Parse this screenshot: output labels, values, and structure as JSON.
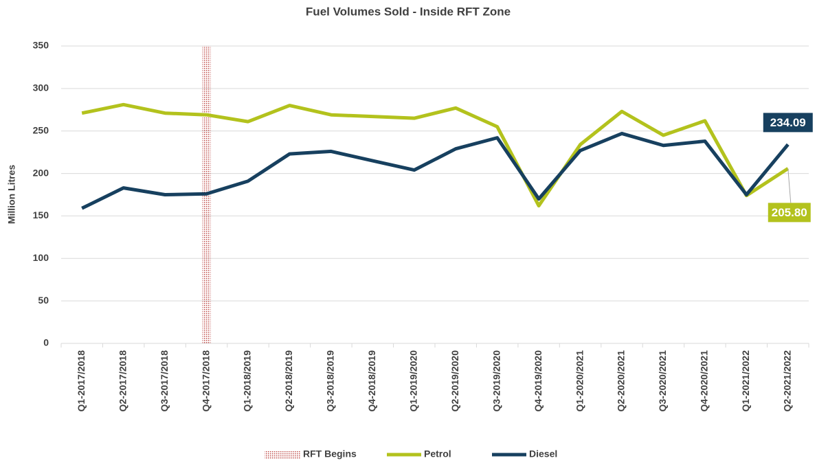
{
  "chart_data": {
    "type": "line",
    "title": "Fuel Volumes Sold - Inside RFT Zone",
    "y_label": "Million Litres",
    "categories": [
      "Q1-2017/2018",
      "Q2-2017/2018",
      "Q3-2017/2018",
      "Q4-2017/2018",
      "Q1-2018/2019",
      "Q2-2018/2019",
      "Q3-2018/2019",
      "Q4-2018/2019",
      "Q1-2019/2020",
      "Q2-2019/2020",
      "Q3-2019/2020",
      "Q4-2019/2020",
      "Q1-2020/2021",
      "Q2-2020/2021",
      "Q3-2020/2021",
      "Q4-2020/2021",
      "Q1-2021/2022",
      "Q2-2021/2022"
    ],
    "series": [
      {
        "name": "Petrol",
        "color": "#b3c21d",
        "values": [
          271,
          281,
          271,
          269,
          261,
          280,
          269,
          267,
          265,
          277,
          255,
          162,
          234,
          273,
          245,
          262,
          174,
          205.8
        ],
        "value_labels": [
          null,
          null,
          null,
          null,
          null,
          null,
          null,
          null,
          null,
          null,
          null,
          null,
          null,
          null,
          null,
          null,
          null,
          "205.80"
        ]
      },
      {
        "name": "Diesel",
        "color": "#17405f",
        "values": [
          159,
          183,
          175,
          176,
          191,
          223,
          226,
          215,
          204,
          229,
          242,
          170,
          227,
          247,
          233,
          238,
          175,
          234.09
        ],
        "value_labels": [
          null,
          null,
          null,
          null,
          null,
          null,
          null,
          null,
          null,
          null,
          null,
          null,
          null,
          null,
          null,
          null,
          null,
          "234.09"
        ]
      }
    ],
    "reference_line": {
      "name": "RFT Begins",
      "category": "Q4-2017/2018",
      "color": "#c0504d"
    },
    "ylim": [
      0,
      350
    ],
    "yticks": [
      0,
      50,
      100,
      150,
      200,
      250,
      300,
      350
    ],
    "grid": true
  }
}
